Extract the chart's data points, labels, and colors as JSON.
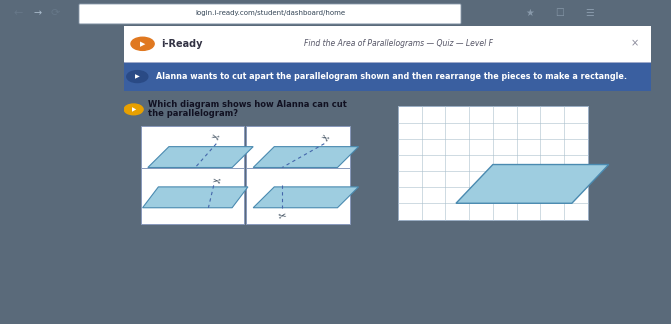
{
  "browser_bar_text": "login.i-ready.com/student/dashboard/home",
  "header_title": "Find the Area of Parallelograms — Quiz — Level F",
  "iready_logo": "i-Ready",
  "question_text1": "Alanna wants to cut apart the parallelogram shown and then rearrange the pieces to make a rectangle.",
  "question_text2a": "Which diagram shows how Alanna can cut",
  "question_text2b": "the parallelogram?",
  "bg_browser": "#5a6a7a",
  "bg_tab": "#b8c4cc",
  "bg_content": "#c8d8e8",
  "bg_white": "#ffffff",
  "para_fill": "#9ecde0",
  "para_stroke": "#4a8ab0",
  "grid_color": "#aabfcc",
  "dashed_color": "#4466aa",
  "header_bar_color": "#3a5fa0",
  "iready_bar_color": "#ffffff",
  "blue_bar_color": "#3a5fa0",
  "tab_bar_color": "#b0bec8"
}
